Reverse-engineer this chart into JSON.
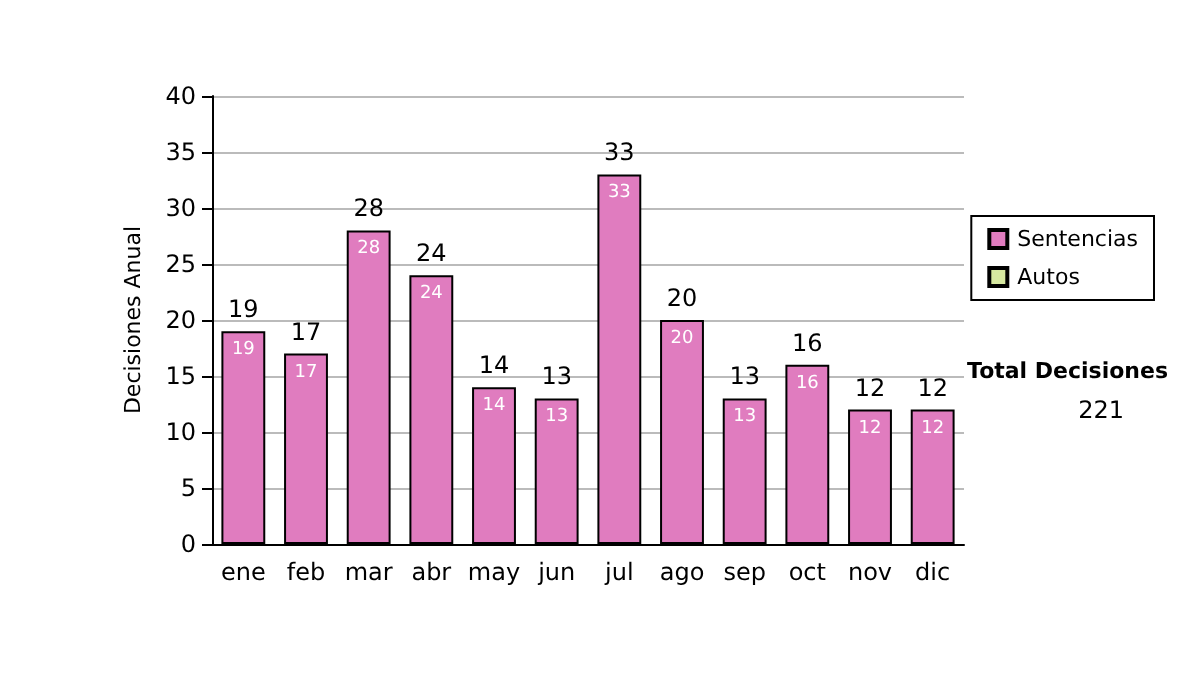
{
  "chart_data": {
    "type": "bar",
    "ylabel": "Decisiones Anual",
    "categories": [
      "ene",
      "feb",
      "mar",
      "abr",
      "may",
      "jun",
      "jul",
      "ago",
      "sep",
      "oct",
      "nov",
      "dic"
    ],
    "series": [
      {
        "name": "Sentencias",
        "color": "#e07cbf",
        "values": [
          19,
          17,
          28,
          24,
          14,
          13,
          33,
          20,
          13,
          16,
          12,
          12
        ],
        "value_labels": [
          "19",
          "17",
          "28",
          "24",
          "14",
          "13",
          "33",
          "20",
          "13",
          "16",
          "12",
          "12"
        ]
      },
      {
        "name": "Autos",
        "color": "#d6e8a0",
        "values": [
          0,
          0,
          0,
          0,
          0,
          0,
          0,
          0,
          0,
          0,
          0,
          0
        ]
      }
    ],
    "stacked": true,
    "totals": [
      "19",
      "17",
      "28",
      "24",
      "14",
      "13",
      "33",
      "20",
      "13",
      "16",
      "12",
      "12"
    ],
    "ylim": [
      0,
      40
    ],
    "yticks": [
      0,
      5,
      10,
      15,
      20,
      25,
      30,
      35,
      40
    ],
    "grid": "y",
    "legend": "right",
    "annotations": [
      "Total Decisiones",
      "221"
    ]
  }
}
